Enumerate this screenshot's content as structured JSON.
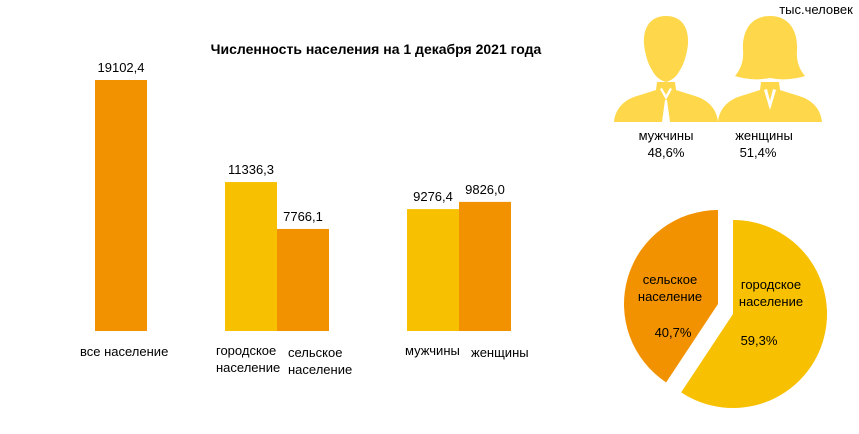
{
  "units_label": "тыс.человек",
  "colors": {
    "orange": "#f39200",
    "yellow": "#f7c000",
    "figure": "#fed84a"
  },
  "chart_data": [
    {
      "type": "bar",
      "title": "Численность населения на 1 декабря 2021 года",
      "bars": [
        {
          "label": "все население",
          "value": 19102.4,
          "value_text": "19102,4",
          "color": "#f39200"
        },
        {
          "label": "городское население",
          "label_lines": [
            "городское",
            "население"
          ],
          "value": 11336.3,
          "value_text": "11336,3",
          "color": "#f7c000"
        },
        {
          "label": "сельское население",
          "label_lines": [
            "сельское",
            "население"
          ],
          "value": 7766.1,
          "value_text": "7766,1",
          "color": "#f39200"
        },
        {
          "label": "мужчины",
          "value": 9276.4,
          "value_text": "9276,4",
          "color": "#f7c000"
        },
        {
          "label": "женщины",
          "value": 9826.0,
          "value_text": "9826,0",
          "color": "#f39200"
        }
      ]
    },
    {
      "type": "pie",
      "slices": [
        {
          "label_lines": [
            "городское",
            "население"
          ],
          "value": 59.3,
          "value_text": "59,3%",
          "color": "#f7c000"
        },
        {
          "label_lines": [
            "сельское",
            "население"
          ],
          "value": 40.7,
          "value_text": "40,7%",
          "color": "#f39200"
        }
      ]
    }
  ],
  "gender": {
    "men": {
      "label": "мужчины",
      "percent": "48,6%",
      "icon": "man-silhouette-icon"
    },
    "women": {
      "label": "женщины",
      "percent": "51,4%",
      "icon": "woman-silhouette-icon"
    }
  }
}
